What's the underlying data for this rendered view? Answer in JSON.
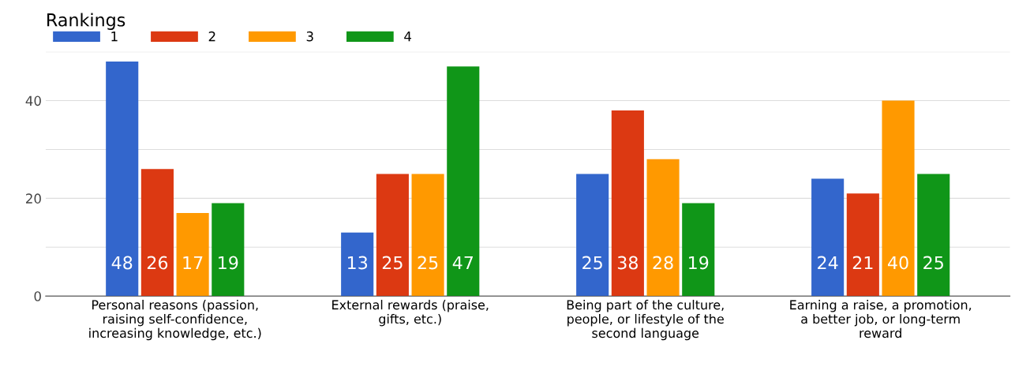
{
  "chart_data": {
    "type": "bar",
    "title": "Rankings",
    "categories": [
      "Personal reasons (passion,\nraising self-confidence,\nincreasing knowledge, etc.)",
      "External rewards (praise,\ngifts, etc.)",
      "Being part of the culture,\npeople, or lifestyle of the\nsecond language",
      "Earning a raise, a promotion,\na better job, or long-term\nreward"
    ],
    "series": [
      {
        "name": "1",
        "color": "#3366cc",
        "values": [
          48,
          13,
          25,
          24
        ]
      },
      {
        "name": "2",
        "color": "#dc3912",
        "values": [
          26,
          25,
          38,
          21
        ]
      },
      {
        "name": "3",
        "color": "#ff9900",
        "values": [
          17,
          25,
          28,
          40
        ]
      },
      {
        "name": "4",
        "color": "#109618",
        "values": [
          19,
          47,
          19,
          25
        ]
      }
    ],
    "ylim": [
      0,
      50
    ],
    "yticks": [
      0,
      {
        "value": 10,
        "label": null
      },
      20,
      {
        "value": 30,
        "label": null
      },
      40,
      {
        "value": 50,
        "label": null
      }
    ],
    "grid": "y",
    "legend": "top left",
    "data_labels": true
  }
}
